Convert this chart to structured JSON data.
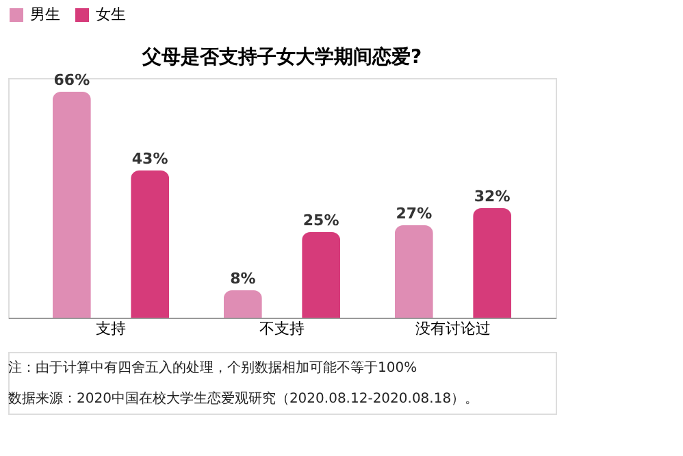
{
  "chart_data": {
    "type": "bar",
    "title": "父母是否支持子女大学期间恋爱?",
    "categories": [
      "支持",
      "不支持",
      "没有讨论过"
    ],
    "series": [
      {
        "name": "男生",
        "color": "#df8db4",
        "values": [
          66,
          8,
          27
        ],
        "value_labels": [
          "66%",
          "8%",
          "27%"
        ]
      },
      {
        "name": "女生",
        "color": "#d63b7a",
        "values": [
          43,
          25,
          32
        ],
        "value_labels": [
          "43%",
          "25%",
          "32%"
        ]
      }
    ],
    "legend": "top",
    "annotations": [
      "注：由于计算中有四舍五入的处理，个别数据相加可能不等于100%",
      "数据来源：2020中国在校大学生恋爱观研究（2020.08.12-2020.08.18）。"
    ]
  }
}
